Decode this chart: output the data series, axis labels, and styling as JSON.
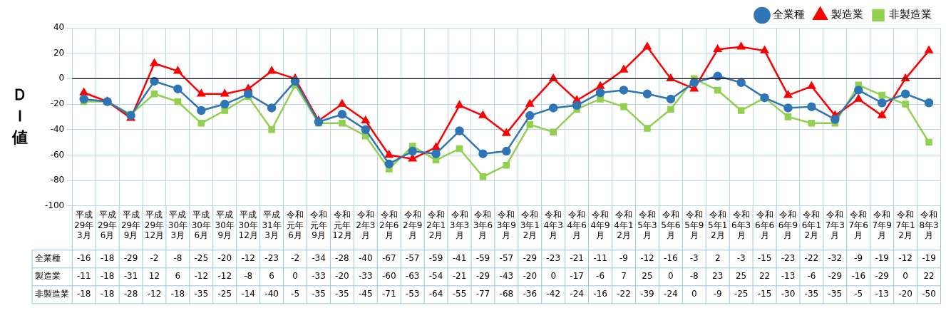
{
  "chart_data": {
    "type": "line",
    "ylabel": "ＤＩ値",
    "categories": [
      "平成29年3月",
      "平成29年6月",
      "平成29年9月",
      "平成29年12月",
      "平成30年3月",
      "平成30年6月",
      "平成30年9月",
      "平成30年12月",
      "平成31年3月",
      "令和元年6月",
      "令和元年9月",
      "令和元年12月",
      "令和2年3月",
      "令和2年6月",
      "令和2年9月",
      "令和2年12月",
      "令和3年3月",
      "令和3年6月",
      "令和3年9月",
      "令和3年12月",
      "令和4年3月",
      "令和4年6月",
      "令和4年9月",
      "令和4年12月",
      "令和5年3月",
      "令和5年6月",
      "令和5年9月",
      "令和5年12月",
      "令和6年3月",
      "令和6年6月",
      "令和6年9月",
      "令和6年12月",
      "令和7年3月",
      "令和7年6月",
      "令和7年9月",
      "令和7年12月",
      "令和8年3月"
    ],
    "series": [
      {
        "name": "全業種",
        "color": "#2e75b6",
        "marker": "circle",
        "values": [
          -16,
          -18,
          -29,
          -2,
          -8,
          -25,
          -20,
          -12,
          -23,
          -2,
          -34,
          -28,
          -40,
          -67,
          -57,
          -59,
          -41,
          -59,
          -57,
          -29,
          -23,
          -21,
          -11,
          -9,
          -12,
          -16,
          -3,
          2,
          -3,
          -15,
          -23,
          -22,
          -32,
          -9,
          -19,
          -12,
          -19
        ]
      },
      {
        "name": "製造業",
        "color": "#ff0000",
        "marker": "triangle",
        "values": [
          -11,
          -18,
          -31,
          12,
          6,
          -12,
          -12,
          -8,
          6,
          0,
          -33,
          -20,
          -33,
          -60,
          -63,
          -54,
          -21,
          -29,
          -43,
          -20,
          0,
          -17,
          -6,
          7,
          25,
          0,
          -8,
          23,
          25,
          22,
          -13,
          -6,
          -29,
          -16,
          -29,
          0,
          22
        ]
      },
      {
        "name": "非製造業",
        "color": "#92d050",
        "marker": "square",
        "values": [
          -18,
          -18,
          -28,
          -12,
          -18,
          -35,
          -25,
          -14,
          -40,
          -5,
          -35,
          -35,
          -45,
          -71,
          -53,
          -64,
          -55,
          -77,
          -68,
          -36,
          -42,
          -24,
          -16,
          -22,
          -39,
          -24,
          0,
          -9,
          -25,
          -15,
          -30,
          -35,
          -35,
          -5,
          -13,
          -20,
          -50
        ]
      }
    ],
    "ylim": [
      -100,
      40
    ],
    "yticks": [
      -100,
      -80,
      -60,
      -40,
      -20,
      0,
      20,
      40
    ],
    "ref_lines": [
      {
        "axis": "y",
        "value": 0,
        "color": "#000000"
      }
    ],
    "grid": true,
    "legend": "top right",
    "data_labels": true
  }
}
